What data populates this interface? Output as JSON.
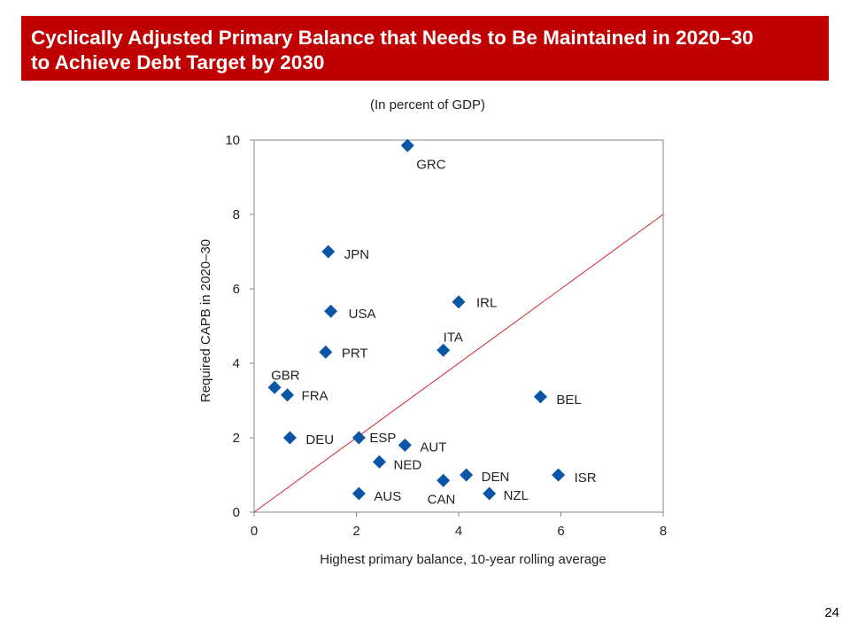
{
  "header": {
    "title_line1": "Cyclically Adjusted Primary Balance that Needs to Be Maintained in 2020–30",
    "title_line2": "to Achieve Debt Target by 2030",
    "banner_color": "#c00000"
  },
  "subtitle": "(In percent of GDP)",
  "page_number": "24",
  "chart_data": {
    "type": "scatter",
    "title": "Cyclically Adjusted Primary Balance that Needs to Be Maintained in 2020–30 to Achieve Debt Target by 2030",
    "subtitle": "(In percent of GDP)",
    "xlabel": "Highest primary balance, 10-year rolling average",
    "ylabel": "Required CAPB in 2020–30",
    "xlim": [
      0,
      8
    ],
    "ylim": [
      0,
      10
    ],
    "xticks": [
      0,
      2,
      4,
      6,
      8
    ],
    "yticks": [
      0,
      2,
      4,
      6,
      8,
      10
    ],
    "grid": false,
    "marker_color": "#0b55a6",
    "reference_line": {
      "description": "45-degree line",
      "x": [
        0,
        8
      ],
      "y": [
        0,
        8
      ],
      "color": "#d0282e"
    },
    "points": [
      {
        "label": "GRC",
        "x": 3.0,
        "y": 9.85
      },
      {
        "label": "JPN",
        "x": 1.45,
        "y": 7.0
      },
      {
        "label": "IRL",
        "x": 4.0,
        "y": 5.65
      },
      {
        "label": "USA",
        "x": 1.5,
        "y": 5.4
      },
      {
        "label": "PRT",
        "x": 1.4,
        "y": 4.3
      },
      {
        "label": "ITA",
        "x": 3.7,
        "y": 4.35
      },
      {
        "label": "GBR",
        "x": 0.4,
        "y": 3.35
      },
      {
        "label": "FRA",
        "x": 0.65,
        "y": 3.15
      },
      {
        "label": "BEL",
        "x": 5.6,
        "y": 3.1
      },
      {
        "label": "DEU",
        "x": 0.7,
        "y": 2.0
      },
      {
        "label": "ESP",
        "x": 2.05,
        "y": 2.0
      },
      {
        "label": "AUT",
        "x": 2.95,
        "y": 1.8
      },
      {
        "label": "NED",
        "x": 2.45,
        "y": 1.35
      },
      {
        "label": "DEN",
        "x": 4.15,
        "y": 1.0
      },
      {
        "label": "ISR",
        "x": 5.95,
        "y": 1.0
      },
      {
        "label": "CAN",
        "x": 3.7,
        "y": 0.85
      },
      {
        "label": "AUS",
        "x": 2.05,
        "y": 0.5
      },
      {
        "label": "NZL",
        "x": 4.6,
        "y": 0.5
      }
    ]
  }
}
